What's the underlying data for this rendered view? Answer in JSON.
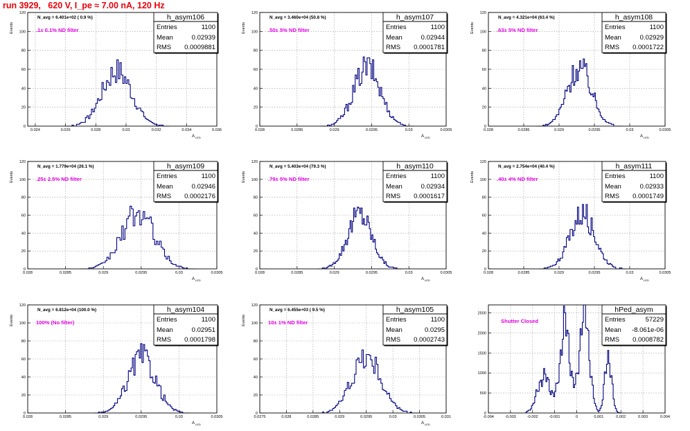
{
  "run_title": "run 3929,   620 V, I_pe ≈ 7.00 nA, 120 Hz",
  "colors": {
    "title": "#e8000b",
    "filter_label": "#e000e0",
    "hist": "#000080",
    "grid": "#999999"
  },
  "chart_data": [
    {
      "type": "histogram",
      "name": "h_asym106",
      "nav": "N_avg = 6.401e+02  ( 0.9 %)",
      "filter": ".1± 0.1% ND filter",
      "entries": "1100",
      "mean": "0.02939",
      "rms": "0.0009881",
      "xlabel": "A",
      "xlabel_sub": "LED",
      "ylabel": "Events",
      "xlim": [
        0.0235,
        0.036
      ],
      "ylim": [
        0,
        120
      ],
      "xticks": [
        "0.024",
        "0.026",
        "0.028",
        "0.03",
        "0.032",
        "0.034",
        "0.036"
      ],
      "yticks": [
        "0",
        "20",
        "40",
        "60",
        "80",
        "100",
        "120"
      ],
      "grid": true
    },
    {
      "type": "histogram",
      "name": "h_asym107",
      "nav": "N_avg = 3.460e+04 (50.8 %)",
      "filter": ".50± 5% ND filter",
      "entries": "1100",
      "mean": "0.02944",
      "rms": "0.0001781",
      "xlabel": "A",
      "xlabel_sub": "LED",
      "ylabel": "Events",
      "xlim": [
        0.028,
        0.0305
      ],
      "ylim": [
        0,
        120
      ],
      "xticks": [
        "0.028",
        "0.0285",
        "0.029",
        "0.0295",
        "0.03",
        "0.0305"
      ],
      "yticks": [
        "0",
        "20",
        "40",
        "60",
        "80",
        "100",
        "120"
      ],
      "grid": true
    },
    {
      "type": "histogram",
      "name": "h_asym108",
      "nav": "N_avg = 4.321e+04 (63.4 %)",
      "filter": ".63± 5% ND filter",
      "entries": "1100",
      "mean": "0.02929",
      "rms": "0.0001722",
      "xlabel": "A",
      "xlabel_sub": "LED",
      "ylabel": "Events",
      "xlim": [
        0.028,
        0.0305
      ],
      "ylim": [
        0,
        120
      ],
      "xticks": [
        "0.028",
        "0.0285",
        "0.029",
        "0.0295",
        "0.03",
        "0.0305"
      ],
      "yticks": [
        "0",
        "20",
        "40",
        "60",
        "80",
        "100",
        "120"
      ],
      "grid": true
    },
    {
      "type": "histogram",
      "name": "h_asym109",
      "nav": "N_avg = 1.779e+04 (26.1 %)",
      "filter": ".25± 2.5% ND filter",
      "entries": "1100",
      "mean": "0.02946",
      "rms": "0.0002176",
      "xlabel": "A",
      "xlabel_sub": "LED",
      "ylabel": "Events",
      "xlim": [
        0.028,
        0.0305
      ],
      "ylim": [
        0,
        120
      ],
      "xticks": [
        "0.028",
        "0.0285",
        "0.029",
        "0.0295",
        "0.03",
        "0.0305"
      ],
      "yticks": [
        "0",
        "20",
        "40",
        "60",
        "80",
        "100",
        "120"
      ],
      "grid": true
    },
    {
      "type": "histogram",
      "name": "h_asym110",
      "nav": "N_avg = 5.403e+04 (79.3 %)",
      "filter": ".79± 5% ND filter",
      "entries": "1100",
      "mean": "0.02934",
      "rms": "0.0001617",
      "xlabel": "A",
      "xlabel_sub": "LED",
      "ylabel": "Events",
      "xlim": [
        0.028,
        0.0305
      ],
      "ylim": [
        0,
        120
      ],
      "xticks": [
        "0.028",
        "0.0285",
        "0.029",
        "0.0295",
        "0.03",
        "0.0305"
      ],
      "yticks": [
        "0",
        "20",
        "40",
        "60",
        "80",
        "100",
        "120"
      ],
      "grid": true
    },
    {
      "type": "histogram",
      "name": "h_asym111",
      "nav": "N_avg = 2.754e+04 (40.4 %)",
      "filter": ".40± 4% ND filter",
      "entries": "1100",
      "mean": "0.02933",
      "rms": "0.0001749",
      "xlabel": "A",
      "xlabel_sub": "LED",
      "ylabel": "Events",
      "xlim": [
        0.028,
        0.0305
      ],
      "ylim": [
        0,
        120
      ],
      "xticks": [
        "0.028",
        "0.0285",
        "0.029",
        "0.0295",
        "0.03",
        "0.0305"
      ],
      "yticks": [
        "0",
        "20",
        "40",
        "60",
        "80",
        "100",
        "120"
      ],
      "grid": true
    },
    {
      "type": "histogram",
      "name": "h_asym104",
      "nav": "N_avg = 6.812e+04 (100.0 %)",
      "filter": "100% (No filter)",
      "entries": "1100",
      "mean": "0.02951",
      "rms": "0.0001798",
      "xlabel": "A",
      "xlabel_sub": "LED",
      "ylabel": "Events",
      "xlim": [
        0.028,
        0.0305
      ],
      "ylim": [
        0,
        120
      ],
      "xticks": [
        "0.028",
        "0.0285",
        "0.029",
        "0.0295",
        "0.03",
        "0.0305"
      ],
      "yticks": [
        "0",
        "20",
        "40",
        "60",
        "80",
        "100",
        "120"
      ],
      "grid": true
    },
    {
      "type": "histogram",
      "name": "h_asym105",
      "nav": "N_avg = 6.455e+03 ( 9.5 %)",
      "filter": "10± 1% ND filter",
      "entries": "1100",
      "mean": "0.0295",
      "rms": "0.0002743",
      "xlabel": "A",
      "xlabel_sub": "LED",
      "ylabel": "Events",
      "xlim": [
        0.0275,
        0.031
      ],
      "ylim": [
        0,
        120
      ],
      "xticks": [
        "0.0275",
        "0.028",
        "0.0285",
        "0.029",
        "0.0295",
        "0.03",
        "0.0305",
        "0.031"
      ],
      "yticks": [
        "0",
        "20",
        "40",
        "60",
        "80",
        "100",
        "120"
      ],
      "grid": true
    },
    {
      "type": "histogram",
      "name": "hPed_asym",
      "nav": "",
      "filter": "Shutter Closed",
      "entries": "57229",
      "mean": "-8.061e-06",
      "rms": "0.0008782",
      "xlabel": "",
      "xlabel_sub": "",
      "ylabel": "",
      "xlim": [
        -0.004,
        0.004
      ],
      "ylim": [
        0,
        2700
      ],
      "xticks": [
        "-0.004",
        "-0.003",
        "-0.002",
        "-0.001",
        "0",
        "0.001",
        "0.002",
        "0.003",
        "0.004"
      ],
      "yticks": [
        "0",
        "500",
        "1000",
        "1500",
        "2000",
        "2500"
      ],
      "grid": true
    }
  ]
}
